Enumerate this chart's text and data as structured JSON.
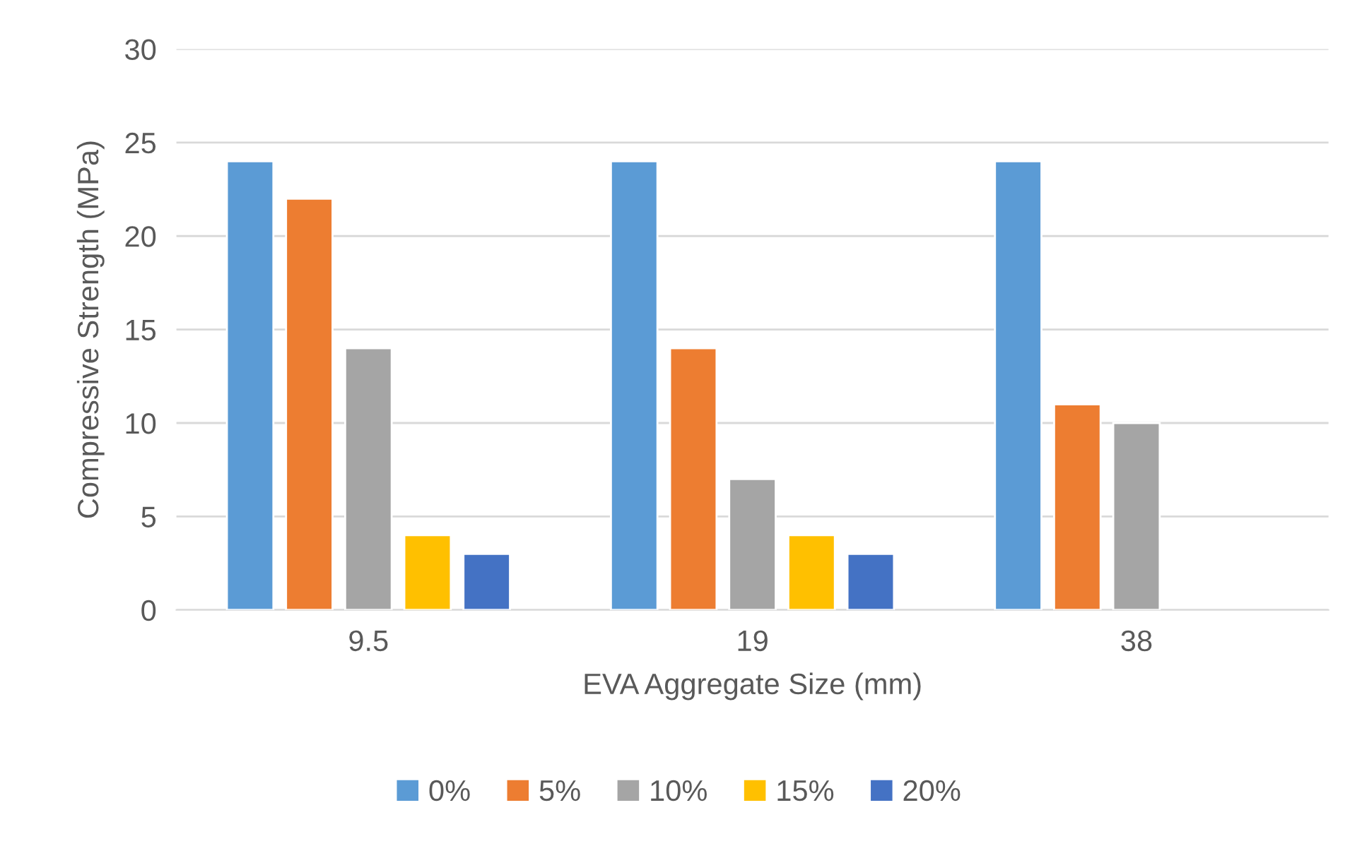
{
  "chart_data": {
    "type": "bar",
    "xlabel": "EVA Aggregate Size (mm)",
    "ylabel": "Compressive Strength (MPa)",
    "categories": [
      "9.5",
      "19",
      "38"
    ],
    "series": [
      {
        "name": "0%",
        "color": "#5b9bd5",
        "values": [
          24,
          24,
          24
        ]
      },
      {
        "name": "5%",
        "color": "#ed7d31",
        "values": [
          22,
          14,
          11
        ]
      },
      {
        "name": "10%",
        "color": "#a5a5a5",
        "values": [
          14,
          7,
          10
        ]
      },
      {
        "name": "15%",
        "color": "#ffc000",
        "values": [
          4,
          4,
          null
        ]
      },
      {
        "name": "20%",
        "color": "#4472c4",
        "values": [
          3,
          3,
          null
        ]
      }
    ],
    "ylim": [
      0,
      30
    ],
    "yticks": [
      0,
      5,
      10,
      15,
      20,
      25,
      30
    ],
    "grid": "y",
    "legend": "bottom"
  }
}
